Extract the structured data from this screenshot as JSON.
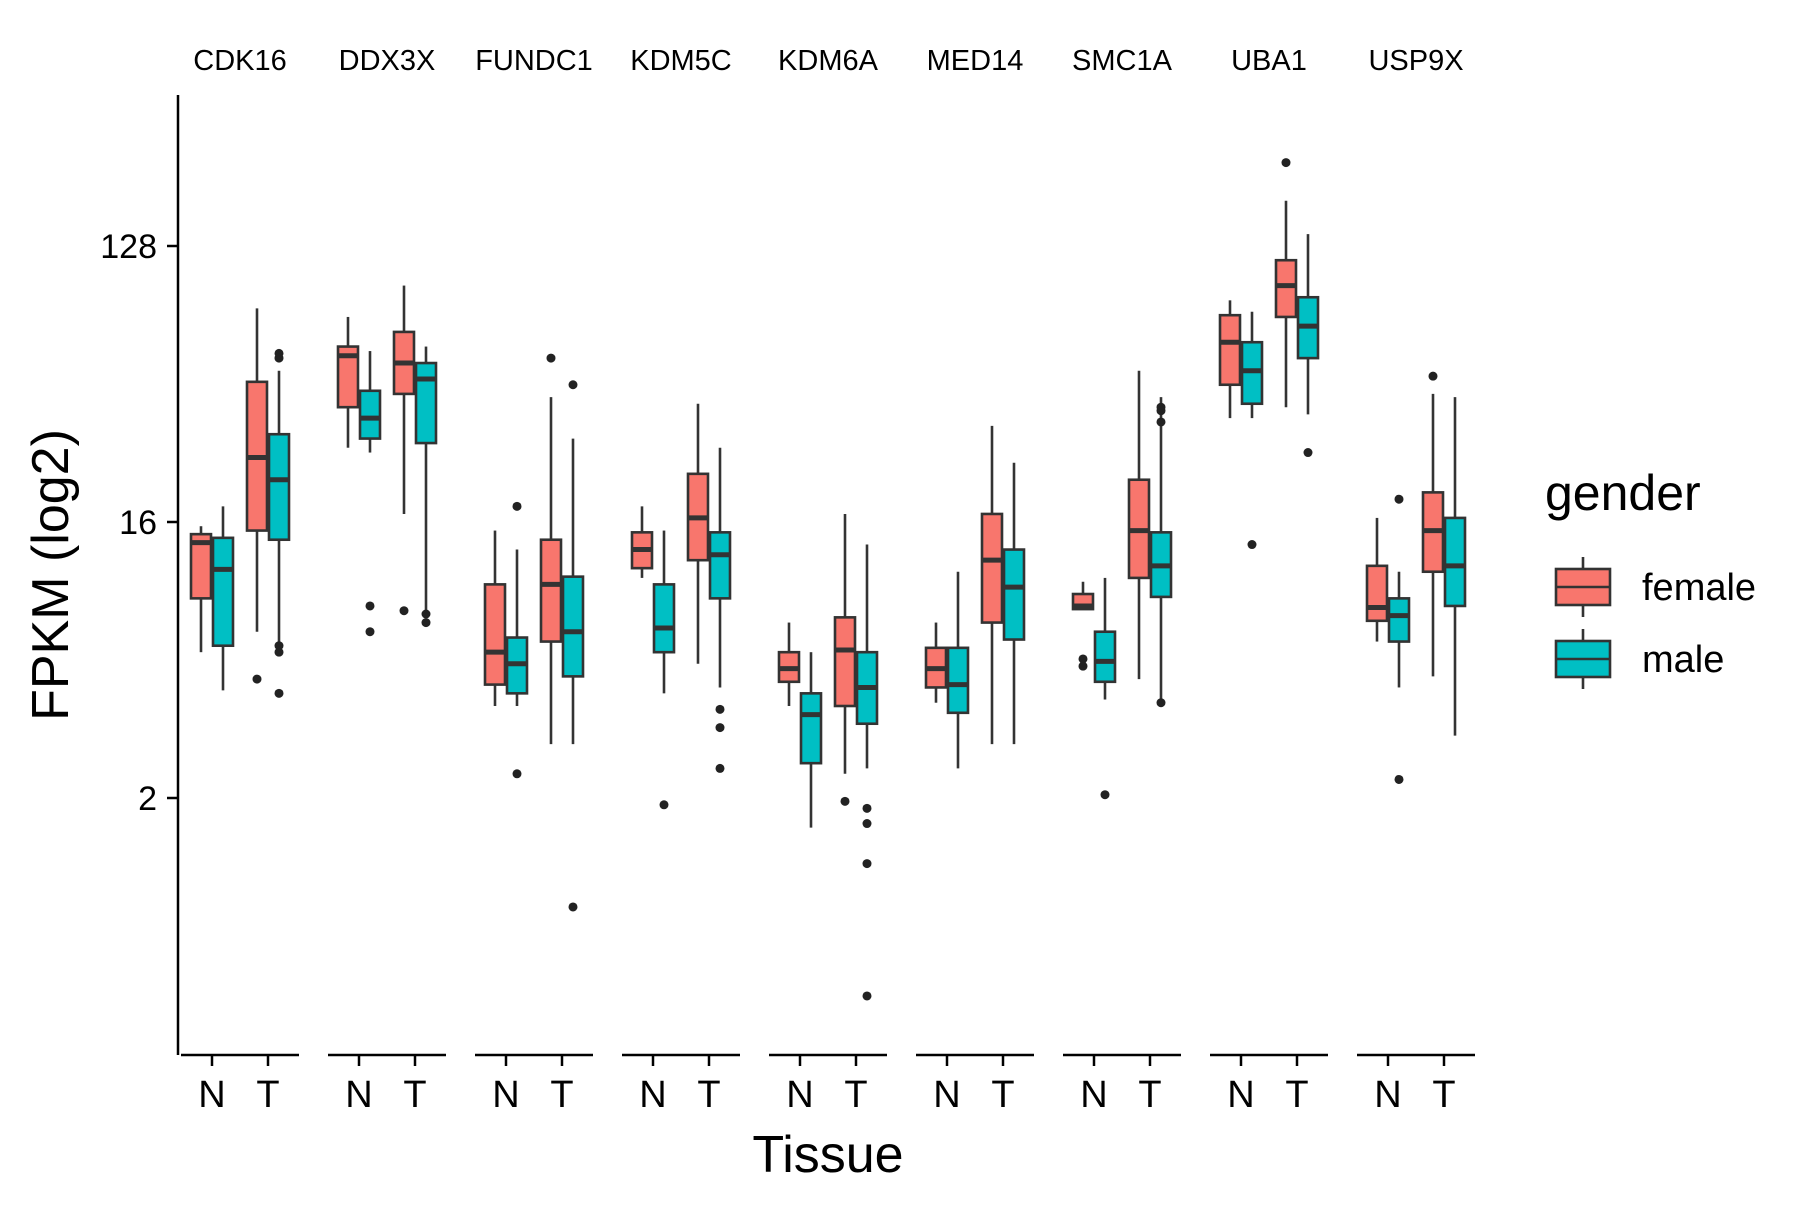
{
  "chart_data": {
    "type": "box",
    "xlabel": "Tissue",
    "ylabel": "FPKM (log2)",
    "y_scale": "log2",
    "ylim": [
      0.25,
      400
    ],
    "y_ticks": [
      2,
      16,
      128
    ],
    "y_tick_labels": [
      "2",
      "16",
      "128"
    ],
    "legend": {
      "title": "gender",
      "placement": "right",
      "entries": [
        {
          "label": "female",
          "color": "#F8766D"
        },
        {
          "label": "male",
          "color": "#00BFC4"
        }
      ]
    },
    "facets": [
      {
        "gene": "CDK16",
        "tissues": [
          "N",
          "T"
        ],
        "groups": [
          {
            "tissue": "N",
            "gender": "female",
            "whisker_low": 6.0,
            "q1": 9.0,
            "median": 13.7,
            "q3": 14.6,
            "whisker_high": 15.5,
            "outliers": []
          },
          {
            "tissue": "N",
            "gender": "male",
            "whisker_low": 4.5,
            "q1": 6.3,
            "median": 11.2,
            "q3": 14.2,
            "whisker_high": 18.0,
            "outliers": []
          },
          {
            "tissue": "T",
            "gender": "female",
            "whisker_low": 7.0,
            "q1": 15.0,
            "median": 26.0,
            "q3": 46.0,
            "whisker_high": 80.0,
            "outliers": [
              4.9
            ]
          },
          {
            "tissue": "T",
            "gender": "male",
            "whisker_low": 6.0,
            "q1": 14.0,
            "median": 22.0,
            "q3": 31.0,
            "whisker_high": 50.0,
            "outliers": [
              4.4,
              6.0,
              6.3,
              55.0,
              57.0
            ]
          }
        ]
      },
      {
        "gene": "DDX3X",
        "tissues": [
          "N",
          "T"
        ],
        "groups": [
          {
            "tissue": "N",
            "gender": "female",
            "whisker_low": 28.0,
            "q1": 38.0,
            "median": 56.0,
            "q3": 60.0,
            "whisker_high": 75.0,
            "outliers": []
          },
          {
            "tissue": "N",
            "gender": "male",
            "whisker_low": 27.0,
            "q1": 30.0,
            "median": 35.0,
            "q3": 43.0,
            "whisker_high": 58.0,
            "outliers": [
              8.5,
              7.0
            ]
          },
          {
            "tissue": "T",
            "gender": "female",
            "whisker_low": 17.0,
            "q1": 42.0,
            "median": 53.0,
            "q3": 67.0,
            "whisker_high": 95.0,
            "outliers": [
              8.2
            ]
          },
          {
            "tissue": "T",
            "gender": "male",
            "whisker_low": 8.0,
            "q1": 29.0,
            "median": 47.0,
            "q3": 53.0,
            "whisker_high": 60.0,
            "outliers": [
              7.5,
              8.0
            ]
          }
        ]
      },
      {
        "gene": "FUNDC1",
        "tissues": [
          "N",
          "T"
        ],
        "groups": [
          {
            "tissue": "N",
            "gender": "female",
            "whisker_low": 4.0,
            "q1": 4.7,
            "median": 6.0,
            "q3": 10.0,
            "whisker_high": 15.0,
            "outliers": []
          },
          {
            "tissue": "N",
            "gender": "male",
            "whisker_low": 4.0,
            "q1": 4.4,
            "median": 5.5,
            "q3": 6.7,
            "whisker_high": 13.0,
            "outliers": [
              18.0,
              2.4
            ]
          },
          {
            "tissue": "T",
            "gender": "female",
            "whisker_low": 3.0,
            "q1": 6.5,
            "median": 10.0,
            "q3": 14.0,
            "whisker_high": 41.0,
            "outliers": [
              55.0
            ]
          },
          {
            "tissue": "T",
            "gender": "male",
            "whisker_low": 3.0,
            "q1": 5.0,
            "median": 7.0,
            "q3": 10.6,
            "whisker_high": 30.0,
            "outliers": [
              45.0,
              0.88
            ]
          }
        ]
      },
      {
        "gene": "KDM5C",
        "tissues": [
          "N",
          "T"
        ],
        "groups": [
          {
            "tissue": "N",
            "gender": "female",
            "whisker_low": 10.5,
            "q1": 11.3,
            "median": 13.0,
            "q3": 14.8,
            "whisker_high": 18.0,
            "outliers": []
          },
          {
            "tissue": "N",
            "gender": "male",
            "whisker_low": 4.4,
            "q1": 6.0,
            "median": 7.2,
            "q3": 10.0,
            "whisker_high": 15.0,
            "outliers": [
              1.9
            ]
          },
          {
            "tissue": "T",
            "gender": "female",
            "whisker_low": 5.5,
            "q1": 12.0,
            "median": 16.5,
            "q3": 23.0,
            "whisker_high": 39.0,
            "outliers": []
          },
          {
            "tissue": "T",
            "gender": "male",
            "whisker_low": 4.6,
            "q1": 9.0,
            "median": 12.5,
            "q3": 14.8,
            "whisker_high": 28.0,
            "outliers": [
              3.9,
              3.4,
              2.5
            ]
          }
        ]
      },
      {
        "gene": "KDM6A",
        "tissues": [
          "N",
          "T"
        ],
        "groups": [
          {
            "tissue": "N",
            "gender": "female",
            "whisker_low": 4.0,
            "q1": 4.8,
            "median": 5.3,
            "q3": 6.0,
            "whisker_high": 7.5,
            "outliers": []
          },
          {
            "tissue": "N",
            "gender": "male",
            "whisker_low": 1.6,
            "q1": 2.6,
            "median": 3.75,
            "q3": 4.4,
            "whisker_high": 6.0,
            "outliers": []
          },
          {
            "tissue": "T",
            "gender": "female",
            "whisker_low": 2.4,
            "q1": 4.0,
            "median": 6.1,
            "q3": 7.8,
            "whisker_high": 17.0,
            "outliers": [
              1.95
            ]
          },
          {
            "tissue": "T",
            "gender": "male",
            "whisker_low": 2.5,
            "q1": 3.5,
            "median": 4.6,
            "q3": 6.0,
            "whisker_high": 13.5,
            "outliers": [
              1.85,
              1.65,
              1.22,
              0.45
            ]
          }
        ]
      },
      {
        "gene": "MED14",
        "tissues": [
          "N",
          "T"
        ],
        "groups": [
          {
            "tissue": "N",
            "gender": "female",
            "whisker_low": 4.1,
            "q1": 4.6,
            "median": 5.3,
            "q3": 6.2,
            "whisker_high": 7.5,
            "outliers": []
          },
          {
            "tissue": "N",
            "gender": "male",
            "whisker_low": 2.5,
            "q1": 3.8,
            "median": 4.7,
            "q3": 6.2,
            "whisker_high": 11.0,
            "outliers": []
          },
          {
            "tissue": "T",
            "gender": "female",
            "whisker_low": 3.0,
            "q1": 7.5,
            "median": 12.0,
            "q3": 17.0,
            "whisker_high": 33.0,
            "outliers": []
          },
          {
            "tissue": "T",
            "gender": "male",
            "whisker_low": 3.0,
            "q1": 6.6,
            "median": 9.8,
            "q3": 13.0,
            "whisker_high": 25.0,
            "outliers": []
          }
        ]
      },
      {
        "gene": "SMC1A",
        "tissues": [
          "N",
          "T"
        ],
        "groups": [
          {
            "tissue": "N",
            "gender": "female",
            "whisker_low": 8.3,
            "q1": 8.3,
            "median": 8.5,
            "q3": 9.3,
            "whisker_high": 10.2,
            "outliers": [
              5.7,
              5.4
            ]
          },
          {
            "tissue": "N",
            "gender": "male",
            "whisker_low": 4.2,
            "q1": 4.8,
            "median": 5.6,
            "q3": 7.0,
            "whisker_high": 10.5,
            "outliers": [
              2.05
            ]
          },
          {
            "tissue": "T",
            "gender": "female",
            "whisker_low": 4.9,
            "q1": 10.5,
            "median": 15.0,
            "q3": 22.0,
            "whisker_high": 50.0,
            "outliers": []
          },
          {
            "tissue": "T",
            "gender": "male",
            "whisker_low": 4.2,
            "q1": 9.1,
            "median": 11.5,
            "q3": 14.8,
            "whisker_high": 41.0,
            "outliers": [
              4.1,
              34.0,
              37.0,
              38.0
            ]
          }
        ]
      },
      {
        "gene": "UBA1",
        "tissues": [
          "N",
          "T"
        ],
        "groups": [
          {
            "tissue": "N",
            "gender": "female",
            "whisker_low": 35.0,
            "q1": 45.0,
            "median": 62.0,
            "q3": 76.0,
            "whisker_high": 85.0,
            "outliers": []
          },
          {
            "tissue": "N",
            "gender": "male",
            "whisker_low": 35.0,
            "q1": 39.0,
            "median": 50.0,
            "q3": 62.0,
            "whisker_high": 78.0,
            "outliers": [
              13.5
            ]
          },
          {
            "tissue": "T",
            "gender": "female",
            "whisker_low": 38.0,
            "q1": 75.0,
            "median": 95.0,
            "q3": 115.0,
            "whisker_high": 180.0,
            "outliers": [
              240.0
            ]
          },
          {
            "tissue": "T",
            "gender": "male",
            "whisker_low": 36.0,
            "q1": 55.0,
            "median": 70.0,
            "q3": 87.0,
            "whisker_high": 140.0,
            "outliers": [
              27.0
            ]
          }
        ]
      },
      {
        "gene": "USP9X",
        "tissues": [
          "N",
          "T"
        ],
        "groups": [
          {
            "tissue": "N",
            "gender": "female",
            "whisker_low": 6.5,
            "q1": 7.6,
            "median": 8.4,
            "q3": 11.5,
            "whisker_high": 16.5,
            "outliers": []
          },
          {
            "tissue": "N",
            "gender": "male",
            "whisker_low": 4.6,
            "q1": 6.5,
            "median": 7.9,
            "q3": 9.0,
            "whisker_high": 11.0,
            "outliers": [
              19.0,
              2.3
            ]
          },
          {
            "tissue": "T",
            "gender": "female",
            "whisker_low": 5.0,
            "q1": 11.0,
            "median": 15.0,
            "q3": 20.0,
            "whisker_high": 42.0,
            "outliers": [
              48.0
            ]
          },
          {
            "tissue": "T",
            "gender": "male",
            "whisker_low": 3.2,
            "q1": 8.5,
            "median": 11.5,
            "q3": 16.5,
            "whisker_high": 41.0,
            "outliers": []
          }
        ]
      }
    ]
  }
}
